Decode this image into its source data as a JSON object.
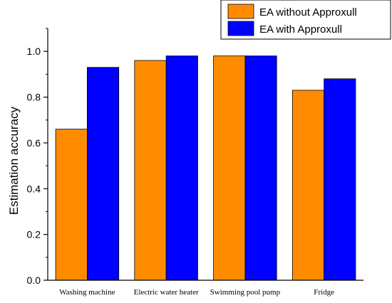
{
  "chart_data": {
    "type": "bar",
    "categories": [
      "Washing machine",
      "Electric water heater",
      "Swimming pool pump",
      "Fridge"
    ],
    "series": [
      {
        "name": "EA without Approxull",
        "color": "#ff8c00",
        "values": [
          0.66,
          0.96,
          0.98,
          0.83
        ]
      },
      {
        "name": "EA with Approxull",
        "color": "#0000ff",
        "values": [
          0.93,
          0.98,
          0.98,
          0.88
        ]
      }
    ],
    "ylabel": "Estimation accuracy",
    "xlabel": "",
    "ylim": [
      0.0,
      1.1
    ],
    "yticks": [
      "0.0",
      "0.2",
      "0.4",
      "0.6",
      "0.8",
      "1.0"
    ],
    "ytick_values": [
      0.0,
      0.2,
      0.4,
      0.6,
      0.8,
      1.0
    ],
    "grid": false,
    "legend_position": "top-right"
  }
}
